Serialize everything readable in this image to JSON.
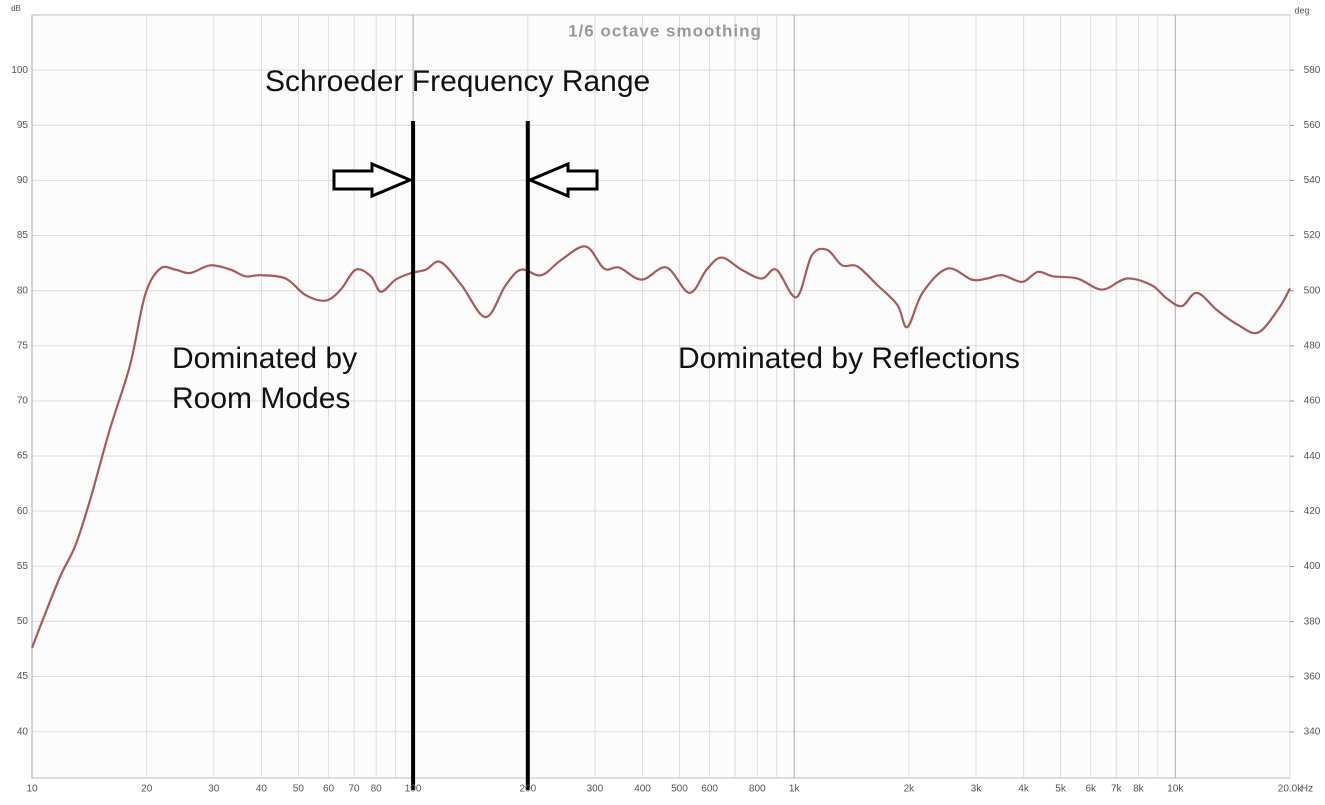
{
  "chart_data": {
    "type": "line",
    "title": "1/6 octave smoothing",
    "y_label": "dB",
    "y2_label": "deg",
    "x_label": "Hz",
    "log_x": true,
    "grid": true,
    "color": "#a85a5a",
    "xlim": [
      10,
      20000
    ],
    "ylim": [
      35.8,
      105
    ],
    "y2lim": [
      323.3,
      600
    ],
    "xticks": [
      10,
      20,
      30,
      40,
      50,
      60,
      70,
      80,
      100,
      200,
      300,
      400,
      500,
      600,
      800,
      {
        "value": 1000,
        "label": "1k"
      },
      {
        "value": 2000,
        "label": "2k"
      },
      {
        "value": 3000,
        "label": "3k"
      },
      {
        "value": 4000,
        "label": "4k"
      },
      {
        "value": 5000,
        "label": "5k"
      },
      {
        "value": 6000,
        "label": "6k"
      },
      {
        "value": 7000,
        "label": "7k"
      },
      {
        "value": 8000,
        "label": "8k"
      },
      {
        "value": 10000,
        "label": "10k"
      },
      {
        "value": 20000,
        "label": "20.0k"
      }
    ],
    "xminor": [
      90,
      700,
      900,
      9000
    ],
    "yticks": [
      40,
      45,
      50,
      55,
      60,
      65,
      70,
      75,
      80,
      85,
      90,
      95,
      100
    ],
    "y2ticks": [
      340,
      360,
      380,
      400,
      420,
      440,
      460,
      480,
      500,
      520,
      540,
      560,
      580
    ],
    "markers": [
      100,
      200
    ],
    "annotations": [
      "Schroeder Frequency Range",
      "Dominated by",
      "Room Modes",
      "Dominated by Reflections"
    ],
    "x": [
      10,
      10.8,
      11.9,
      13,
      14.2,
      16,
      18.1,
      19.8,
      21.7,
      23.8,
      26,
      29.4,
      33.2,
      36.3,
      39.8,
      46.3,
      52.2,
      59,
      64.6,
      70.7,
      77.5,
      82.3,
      90,
      98.9,
      108,
      118,
      134,
      155,
      175,
      192,
      217,
      245,
      284,
      317,
      347,
      398,
      462,
      531,
      589,
      645,
      728,
      822,
      898,
      1014,
      1112,
      1220,
      1335,
      1464,
      1653,
      1866,
      1981,
      2171,
      2524,
      2924,
      3206,
      3513,
      3968,
      4355,
      4776,
      5540,
      6427,
      7463,
      8659,
      9497,
      10400,
      11400,
      12900,
      14600,
      16500,
      18700,
      20000
    ],
    "values": [
      47.6,
      50.6,
      54.2,
      56.9,
      61.0,
      67.4,
      73.3,
      79.6,
      82.0,
      81.9,
      81.6,
      82.3,
      81.9,
      81.3,
      81.4,
      81.1,
      79.6,
      79.1,
      80.1,
      81.9,
      81.3,
      79.9,
      81.0,
      81.6,
      81.9,
      82.6,
      80.5,
      77.6,
      80.5,
      81.9,
      81.4,
      82.8,
      84.0,
      82.0,
      82.1,
      81.0,
      82.1,
      79.8,
      81.9,
      83.0,
      81.9,
      81.1,
      81.9,
      79.4,
      83.2,
      83.7,
      82.3,
      82.2,
      80.5,
      78.7,
      76.7,
      79.8,
      82.0,
      81.0,
      81.1,
      81.4,
      80.8,
      81.7,
      81.3,
      81.1,
      80.1,
      81.1,
      80.5,
      79.3,
      78.6,
      79.8,
      78.2,
      76.9,
      76.2,
      78.4,
      80.2
    ]
  }
}
